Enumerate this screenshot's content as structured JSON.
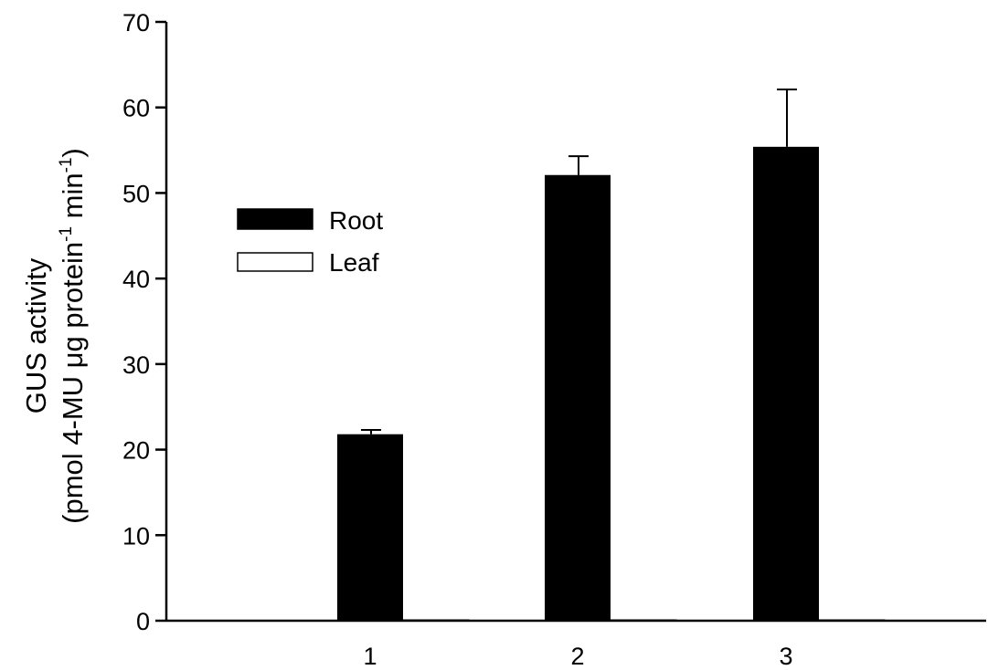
{
  "chart_data": {
    "type": "bar",
    "categories": [
      "1",
      "2",
      "3"
    ],
    "series": [
      {
        "name": "Root",
        "color": "#000000",
        "values": [
          21.8,
          52.1,
          55.4
        ],
        "errors": [
          0.5,
          2.2,
          6.7
        ]
      },
      {
        "name": "Leaf",
        "color": "#ffffff",
        "values": [
          0,
          0,
          0
        ],
        "errors": [
          0,
          0,
          0
        ]
      }
    ],
    "ylabel_line1": "GUS activity",
    "ylabel_line2_part1": "(pmol 4-MU μg protein",
    "ylabel_line2_sup1": "-1",
    "ylabel_line2_part2": " min",
    "ylabel_line2_sup2": "-1",
    "ylabel_line2_part3": ")",
    "ylim": [
      0,
      70
    ],
    "yticks": [
      0,
      10,
      20,
      30,
      40,
      50,
      60,
      70
    ],
    "grid": false,
    "legend_position": "upper-left"
  }
}
